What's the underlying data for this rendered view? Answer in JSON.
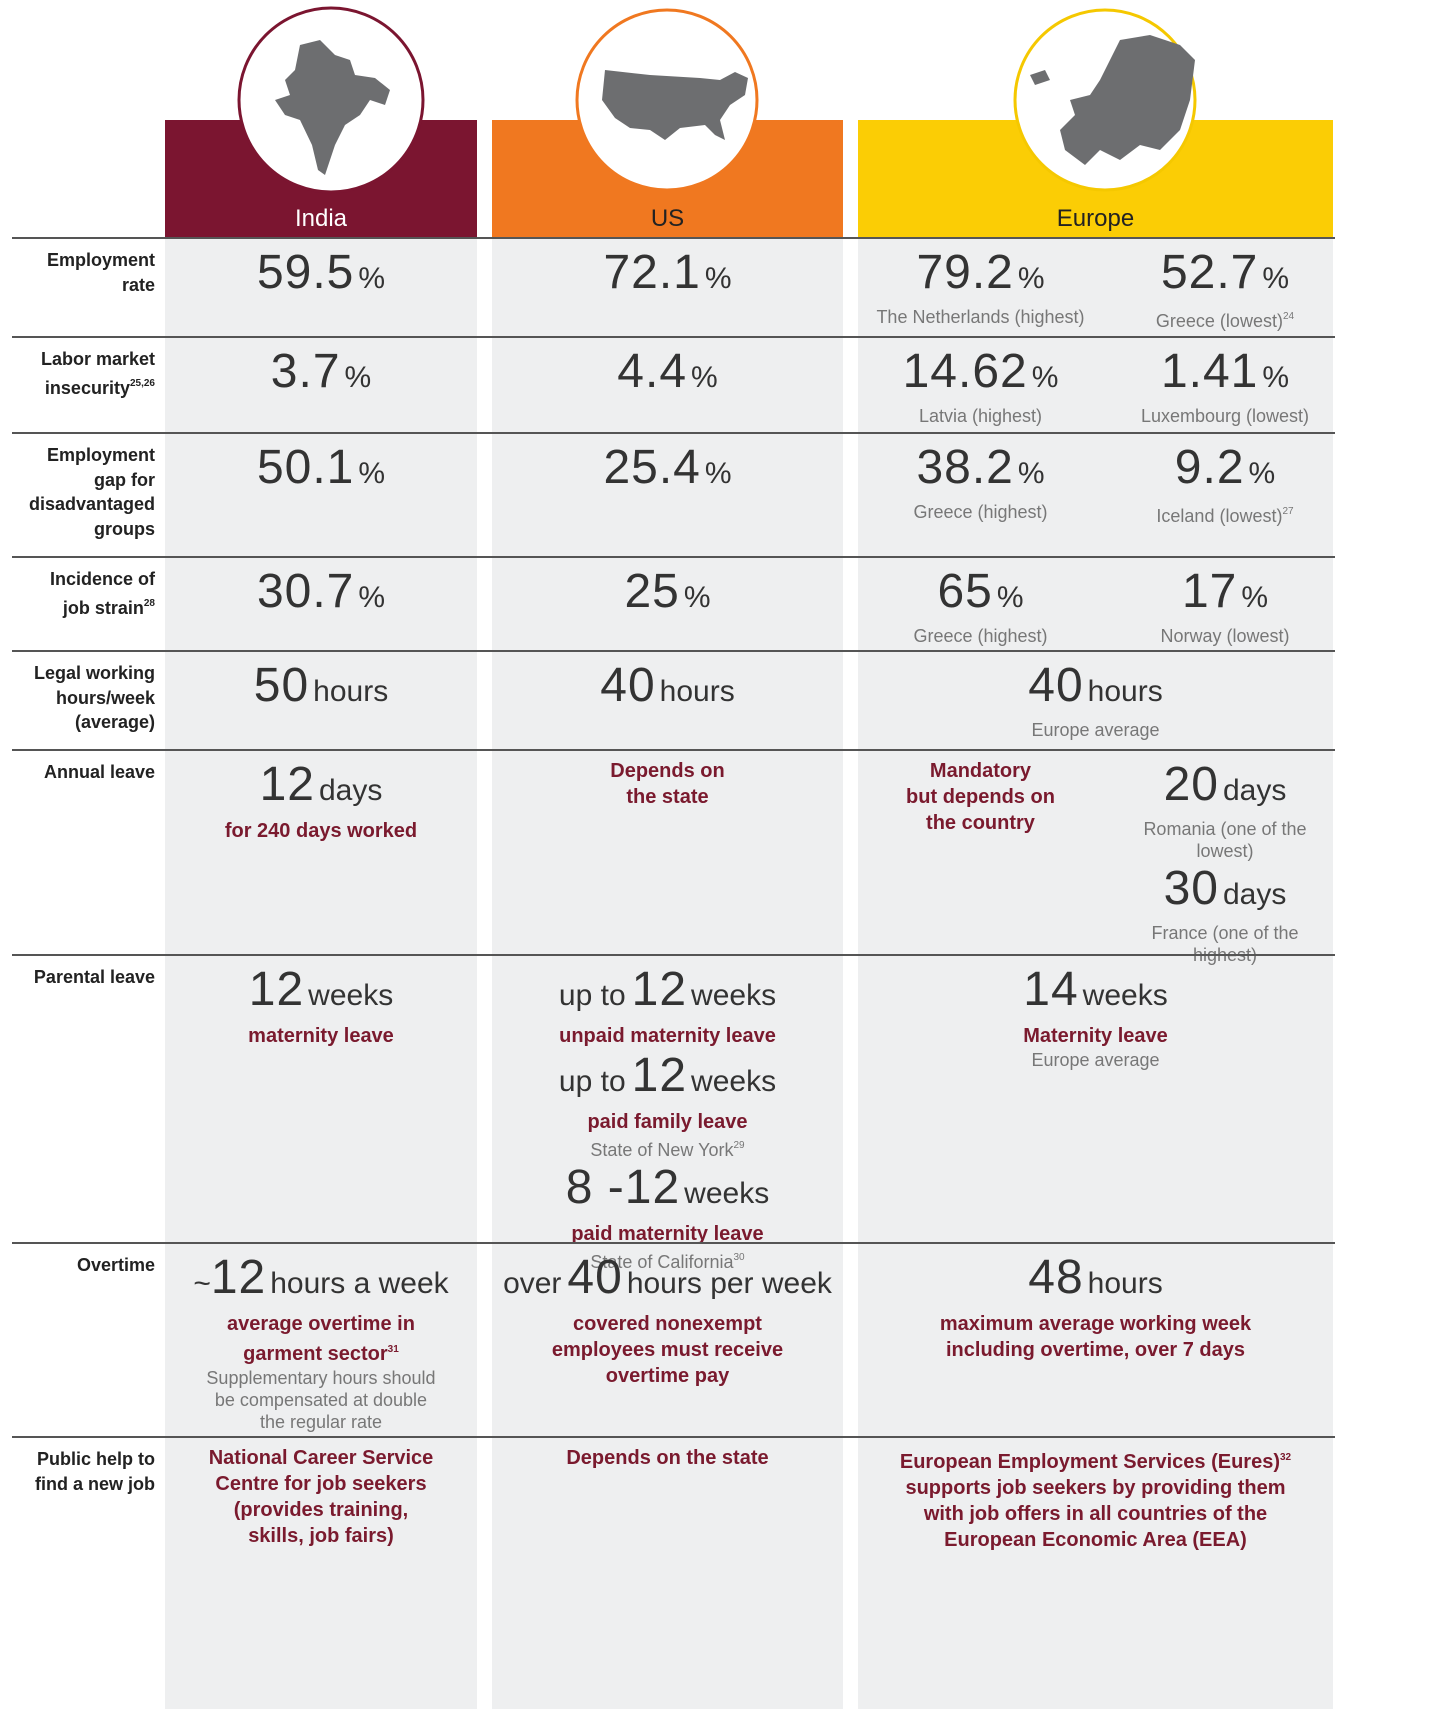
{
  "header": {
    "columns": [
      {
        "name": "India"
      },
      {
        "name": "US"
      },
      {
        "name": "Europe"
      }
    ]
  },
  "rows": [
    {
      "label": [
        "Employment",
        "rate"
      ],
      "cells": [
        [
          [
            {
              "big": 59.5,
              "unit": "%"
            }
          ]
        ],
        [
          [
            {
              "big": 72.1,
              "unit": "%"
            }
          ]
        ],
        [
          [
            {
              "big": 79.2,
              "unit": "%",
              "note": [
                "The Netherlands (highest)"
              ]
            }
          ],
          [
            {
              "big": 52.7,
              "unit": "%",
              "note": [
                {
                  "text": "Greece (lowest)",
                  "sup": "24"
                }
              ]
            }
          ]
        ]
      ]
    },
    {
      "label": [
        "Labor market",
        {
          "text": "insecurity",
          "sup": "25,26"
        }
      ],
      "cells": [
        [
          [
            {
              "big": 3.7,
              "unit": "%"
            }
          ]
        ],
        [
          [
            {
              "big": 4.4,
              "unit": "%"
            }
          ]
        ],
        [
          [
            {
              "big": 14.62,
              "unit": "%",
              "note": [
                "Latvia (highest)"
              ]
            }
          ],
          [
            {
              "big": 1.41,
              "unit": "%",
              "note": [
                "Luxembourg (lowest)"
              ]
            }
          ]
        ]
      ]
    },
    {
      "label": [
        "Employment",
        "gap for",
        "disadvantaged",
        "groups"
      ],
      "cells": [
        [
          [
            {
              "big": 50.1,
              "unit": "%"
            }
          ]
        ],
        [
          [
            {
              "big": 25.4,
              "unit": "%"
            }
          ]
        ],
        [
          [
            {
              "big": 38.2,
              "unit": "%",
              "note": [
                "Greece (highest)"
              ]
            }
          ],
          [
            {
              "big": 9.2,
              "unit": "%",
              "note": [
                {
                  "text": "Iceland (lowest)",
                  "sup": "27"
                }
              ]
            }
          ]
        ]
      ]
    },
    {
      "label": [
        "Incidence of",
        {
          "text": "job strain",
          "sup": "28"
        }
      ],
      "cells": [
        [
          [
            {
              "big": 30.7,
              "unit": "%"
            }
          ]
        ],
        [
          [
            {
              "big": 25,
              "unit": "%"
            }
          ]
        ],
        [
          [
            {
              "big": 65,
              "unit": "%",
              "note": [
                "Greece (highest)"
              ]
            }
          ],
          [
            {
              "big": 17,
              "unit": "%",
              "note": [
                "Norway (lowest)"
              ]
            }
          ]
        ]
      ]
    },
    {
      "label": [
        "Legal working",
        "hours/week",
        "(average)"
      ],
      "cells": [
        [
          [
            {
              "big": 50,
              "unit": "hours"
            }
          ]
        ],
        [
          [
            {
              "big": 40,
              "unit": "hours"
            }
          ]
        ],
        [
          [
            {
              "big": 40,
              "unit": "hours",
              "note": [
                "Europe average"
              ]
            }
          ]
        ]
      ]
    },
    {
      "label": [
        "Annual leave"
      ],
      "cells": [
        [
          [
            {
              "big": 12,
              "unit": "days",
              "bold": [
                "for 240 days worked"
              ]
            }
          ]
        ],
        [
          [
            {
              "bold": [
                "Depends on",
                "the state"
              ]
            }
          ]
        ],
        [
          [
            {
              "bold": [
                "Mandatory",
                "but depends on",
                "the country"
              ]
            }
          ],
          [
            {
              "big": 20,
              "unit": "days",
              "note": [
                "Romania (one of the",
                "lowest)"
              ]
            },
            {
              "big": 30,
              "unit": "days",
              "note": [
                "France (one of the",
                "highest)"
              ]
            }
          ]
        ]
      ]
    },
    {
      "label": [
        "Parental leave"
      ],
      "cells": [
        [
          [
            {
              "big": 12,
              "unit": "weeks",
              "bold": [
                "maternity leave"
              ]
            }
          ]
        ],
        [
          [
            {
              "prefix": "up to",
              "big": 12,
              "unit": "weeks",
              "bold": [
                "unpaid maternity leave"
              ]
            },
            {
              "prefix": "up to",
              "big": 12,
              "unit": "weeks",
              "bold": [
                "paid family leave"
              ],
              "note": [
                {
                  "text": "State of New York",
                  "sup": "29"
                }
              ]
            },
            {
              "big": "8 -12",
              "unit": "weeks",
              "bold": [
                "paid maternity leave"
              ],
              "note": [
                {
                  "text": "State of California",
                  "sup": "30"
                }
              ]
            }
          ]
        ],
        [
          [
            {
              "big": 14,
              "unit": "weeks",
              "bold": [
                "Maternity leave"
              ],
              "note": [
                "Europe average"
              ]
            }
          ]
        ]
      ]
    },
    {
      "label": [
        "Overtime"
      ],
      "cells": [
        [
          [
            {
              "prefix": "~",
              "big": 12,
              "unit": "hours a week",
              "bold": [
                "average overtime in",
                {
                  "text": "garment sector",
                  "sup": "31"
                }
              ],
              "note": [
                "Supplementary hours should",
                "be compensated at double",
                "the regular rate"
              ]
            }
          ]
        ],
        [
          [
            {
              "prefix": "over",
              "big": 40,
              "unit": "hours per week",
              "bold": [
                "covered nonexempt",
                "employees must receive",
                "overtime pay"
              ]
            }
          ]
        ],
        [
          [
            {
              "big": 48,
              "unit": "hours",
              "bold": [
                "maximum average working week",
                "including overtime, over 7 days"
              ]
            }
          ]
        ]
      ]
    },
    {
      "label": [
        "Public help to",
        "find a new job"
      ],
      "cells": [
        [
          [
            {
              "bold": [
                "National Career Service",
                "Centre for job seekers",
                "(provides training,",
                "skills, job fairs)"
              ]
            }
          ]
        ],
        [
          [
            {
              "bold": [
                "Depends on the state"
              ]
            }
          ]
        ],
        [
          [
            {
              "bold": [
                {
                  "text": "European Employment Services (Eures)",
                  "sup": "32"
                },
                "supports job seekers by providing them",
                "with job offers in all countries of the",
                "European Economic Area (EEA)"
              ]
            }
          ]
        ]
      ]
    }
  ]
}
